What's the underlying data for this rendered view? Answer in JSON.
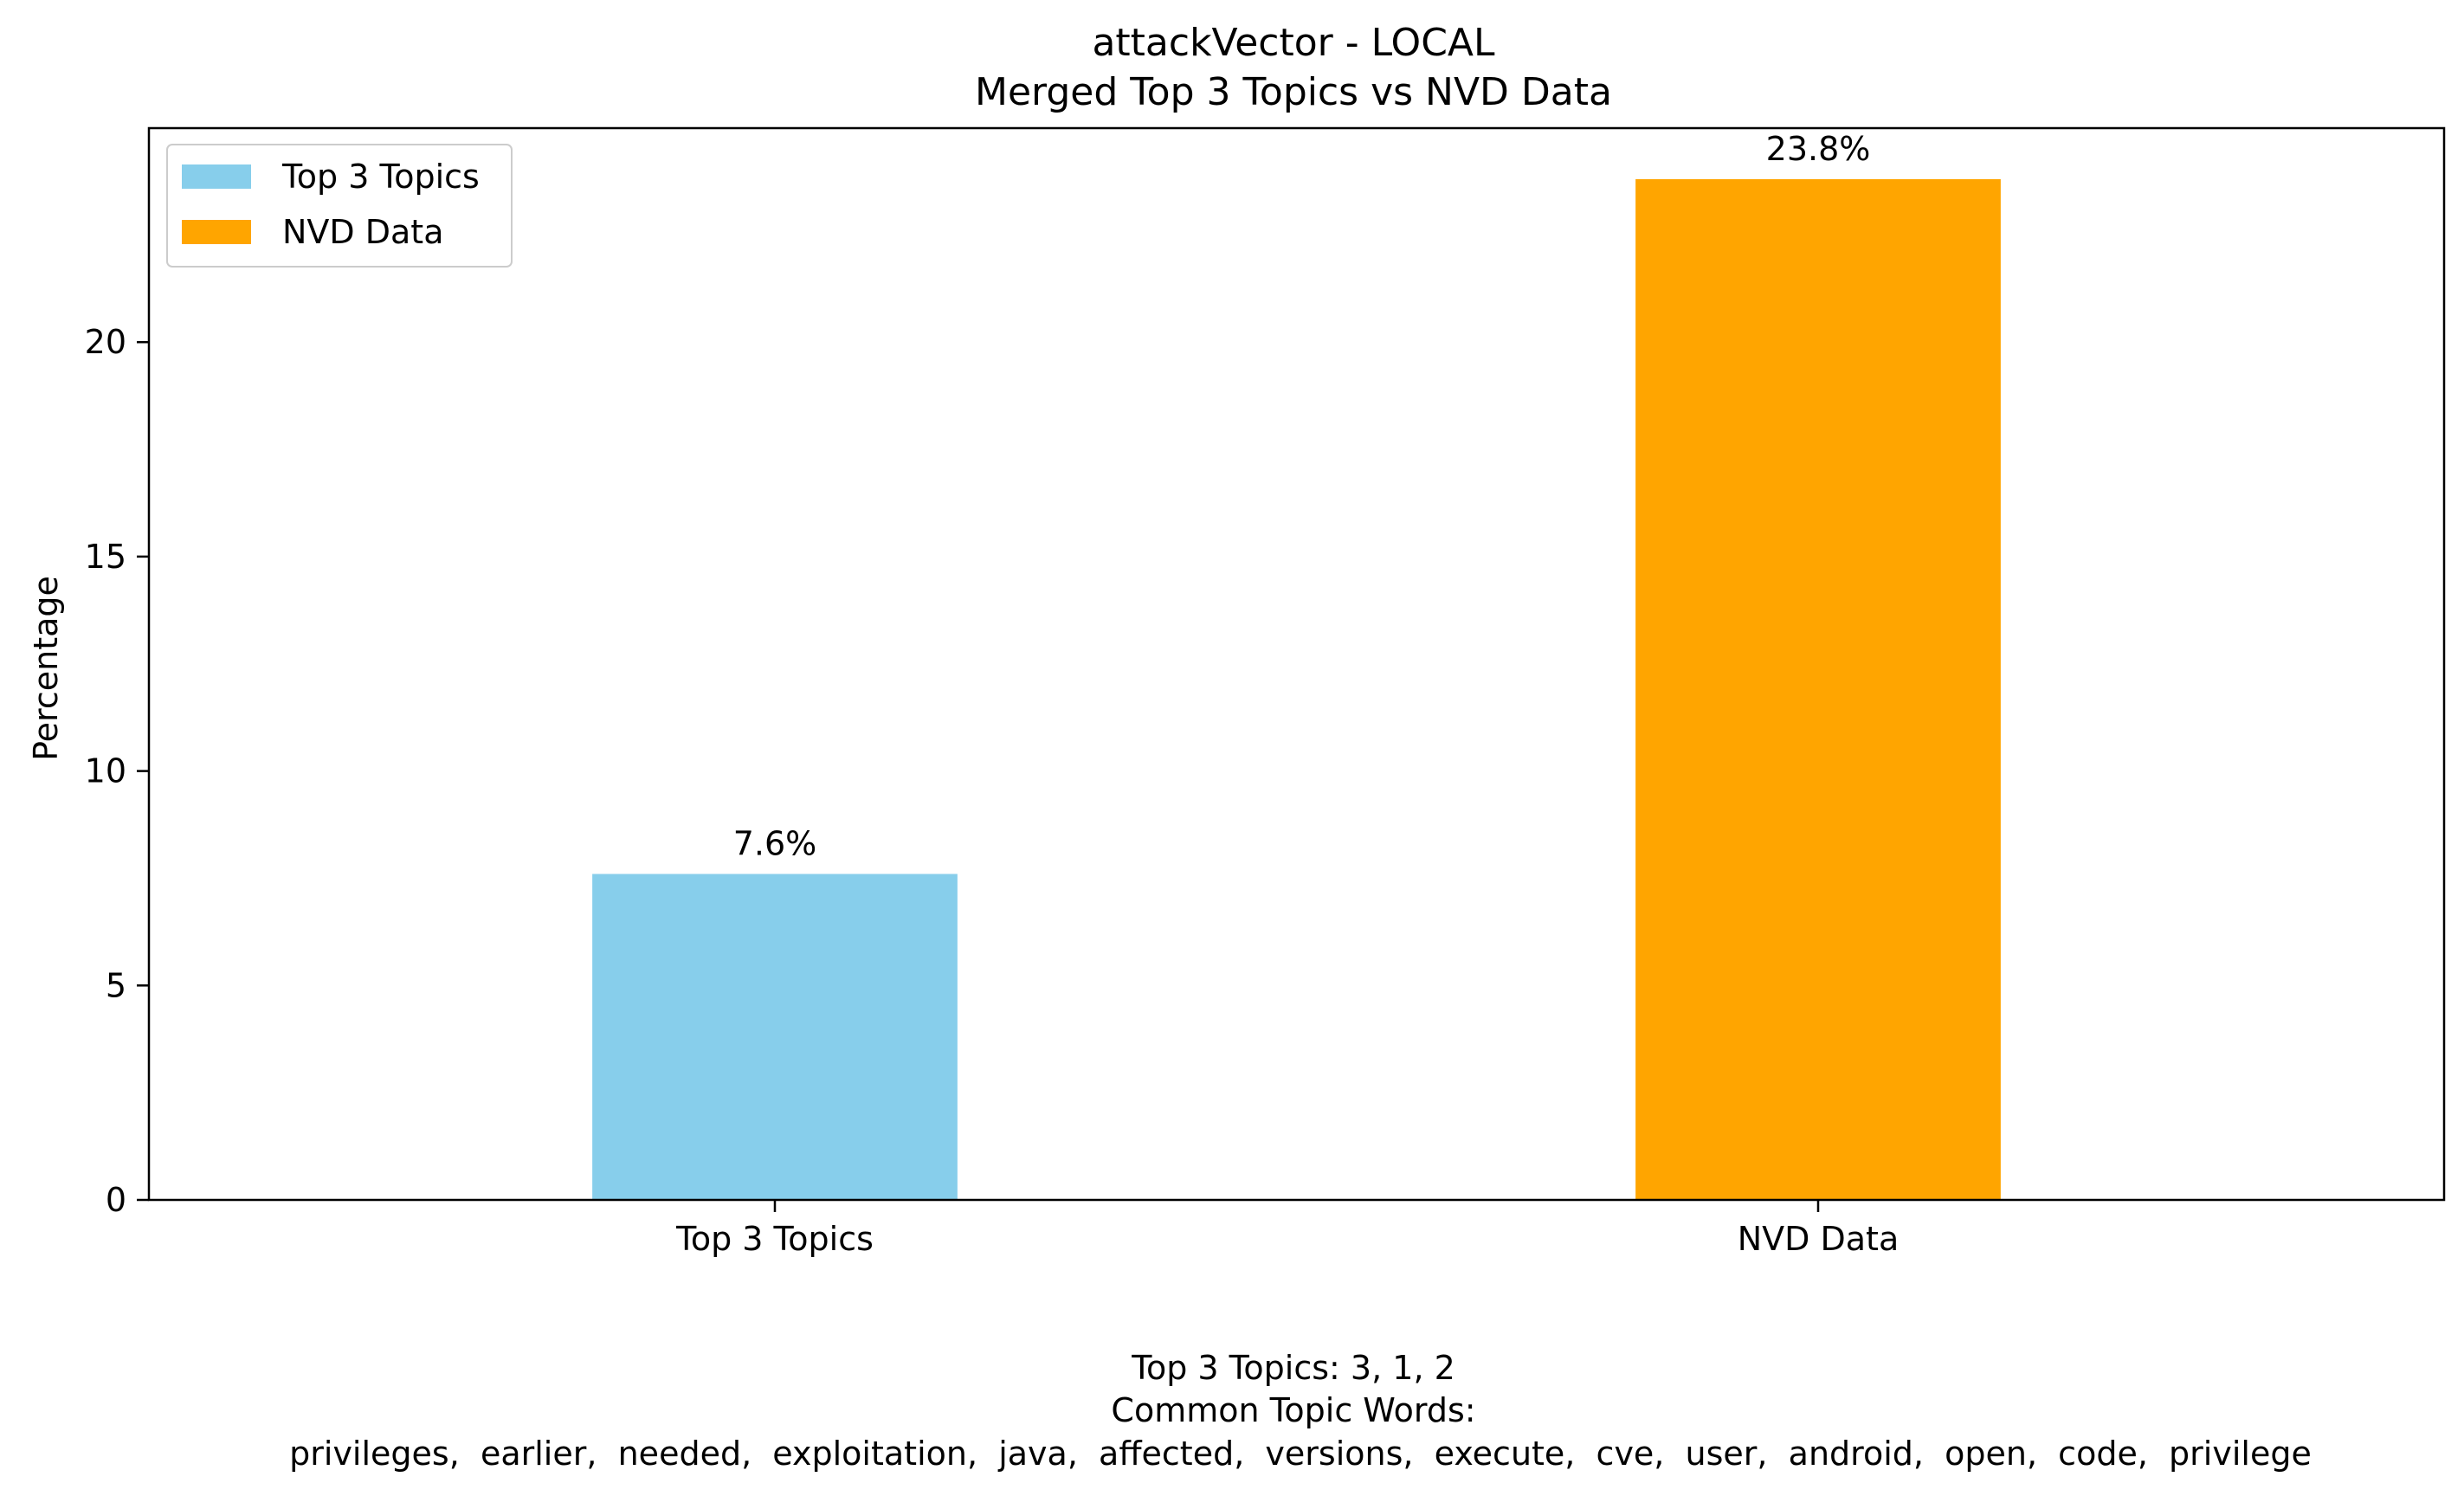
{
  "chart_data": {
    "type": "bar",
    "title": "attackVector - LOCAL",
    "subtitle": "Merged Top 3 Topics vs NVD Data",
    "categories": [
      "Top 3 Topics",
      "NVD Data"
    ],
    "values": [
      7.6,
      23.8
    ],
    "value_labels": [
      "7.6%",
      "23.8%"
    ],
    "colors": [
      "#87ceeb",
      "#ffa500"
    ],
    "xlabel": "",
    "ylabel": "Percentage",
    "ylim": [
      0,
      24.99
    ],
    "yticks": [
      0,
      5,
      10,
      15,
      20
    ],
    "grid": false,
    "legend": {
      "placement": "upper-left",
      "entries": [
        {
          "label": "Top 3 Topics",
          "color": "#87ceeb"
        },
        {
          "label": "NVD Data",
          "color": "#ffa500"
        }
      ]
    }
  },
  "footer": {
    "topics_line": "Top 3 Topics: 3, 1, 2",
    "common_words_heading": "Common Topic Words:",
    "common_words_line": "privileges,  earlier,  needed,  exploitation,  java,  affected,  versions,  execute,  cve,  user,  android,  open,  code,  privilege"
  }
}
